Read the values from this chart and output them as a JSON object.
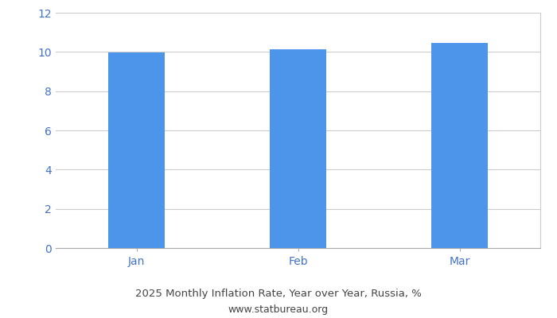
{
  "categories": [
    "Jan",
    "Feb",
    "Mar"
  ],
  "values": [
    9.97,
    10.12,
    10.46
  ],
  "bar_color": "#4d94eb",
  "title_line1": "2025 Monthly Inflation Rate, Year over Year, Russia, %",
  "title_line2": "www.statbureau.org",
  "title_fontsize": 9.5,
  "subtitle_fontsize": 9.0,
  "ylim": [
    0,
    12
  ],
  "yticks": [
    0,
    2,
    4,
    6,
    8,
    10,
    12
  ],
  "background_color": "#ffffff",
  "grid_color": "#cccccc",
  "tick_label_color": "#4472c4",
  "title_color": "#444444",
  "bar_width": 0.35,
  "xlim": [
    -0.5,
    2.5
  ]
}
